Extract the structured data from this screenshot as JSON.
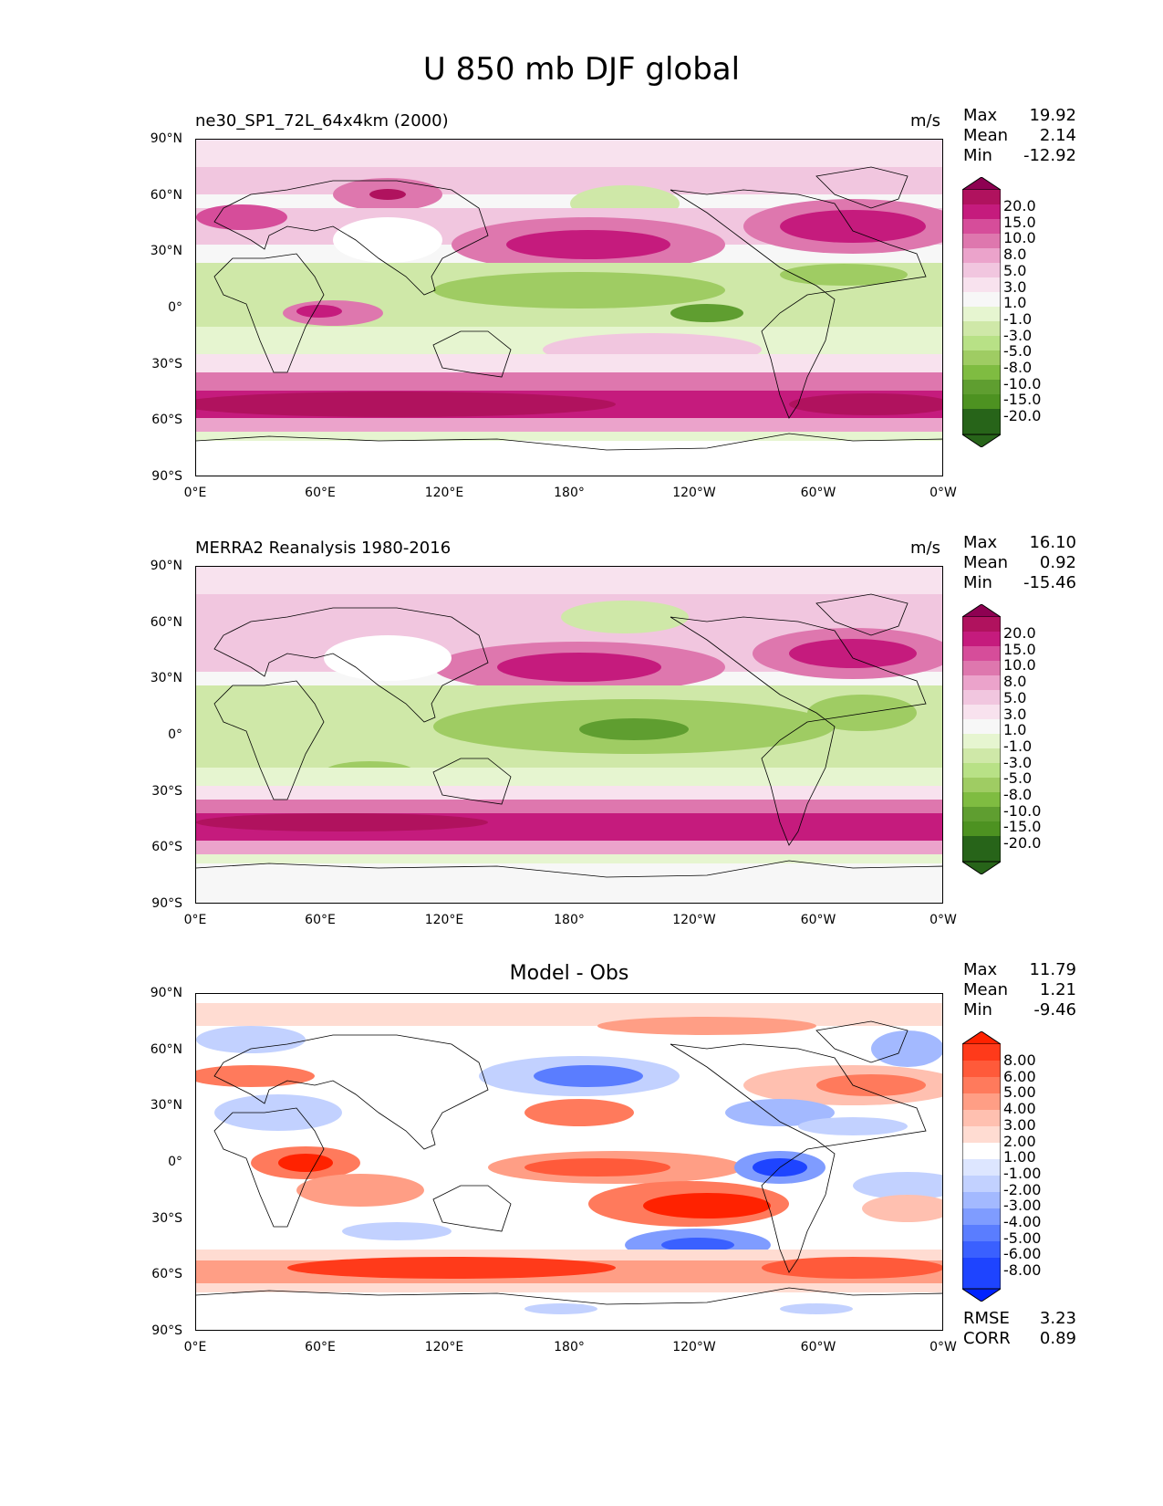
{
  "title": "U 850 mb DJF global",
  "axes": {
    "yticks": [
      "90°N",
      "60°N",
      "30°N",
      "0°",
      "30°S",
      "60°S",
      "90°S"
    ],
    "xticks": [
      "0°E",
      "60°E",
      "120°E",
      "180°",
      "120°W",
      "60°W",
      "0°W"
    ]
  },
  "panels": [
    {
      "title": "ne30_SP1_72L_64x4km (2000)",
      "units": "m/s",
      "stats": {
        "max_label": "Max",
        "max": "19.92",
        "mean_label": "Mean",
        "mean": "2.14",
        "min_label": "Min",
        "min": "-12.92"
      },
      "colorbar_labels": [
        "20.0",
        "15.0",
        "10.0",
        "8.0",
        "5.0",
        "3.0",
        "1.0",
        "-1.0",
        "-3.0",
        "-5.0",
        "-8.0",
        "-10.0",
        "-15.0",
        "-20.0"
      ]
    },
    {
      "title": "MERRA2 Reanalysis 1980-2016",
      "units": "m/s",
      "stats": {
        "max_label": "Max",
        "max": "16.10",
        "mean_label": "Mean",
        "mean": "0.92",
        "min_label": "Min",
        "min": "-15.46"
      },
      "colorbar_labels": [
        "20.0",
        "15.0",
        "10.0",
        "8.0",
        "5.0",
        "3.0",
        "1.0",
        "-1.0",
        "-3.0",
        "-5.0",
        "-8.0",
        "-10.0",
        "-15.0",
        "-20.0"
      ]
    },
    {
      "title": "Model - Obs",
      "units": "",
      "stats": {
        "max_label": "Max",
        "max": "11.79",
        "mean_label": "Mean",
        "mean": "1.21",
        "min_label": "Min",
        "min": "-9.46"
      },
      "colorbar_labels": [
        "8.00",
        "6.00",
        "5.00",
        "4.00",
        "3.00",
        "2.00",
        "1.00",
        "-1.00",
        "-2.00",
        "-3.00",
        "-4.00",
        "-5.00",
        "-6.00",
        "-8.00"
      ],
      "footer": {
        "rmse_label": "RMSE",
        "rmse": "3.23",
        "corr_label": "CORR",
        "corr": "0.89"
      }
    }
  ],
  "colors": {
    "pink_green": [
      "#8e0152",
      "#b0125e",
      "#c51b7d",
      "#d64d9a",
      "#de77ae",
      "#eba3cb",
      "#f1c6df",
      "#f8e2ee",
      "#f7f7f7",
      "#e6f5d0",
      "#cfe8a8",
      "#b8e186",
      "#9fcc63",
      "#7fbc41",
      "#5f9e30",
      "#4d9221",
      "#276419"
    ],
    "diff": [
      "#ff2200",
      "#ff3a1a",
      "#ff5a3a",
      "#ff7a5c",
      "#ff9e85",
      "#ffc0b0",
      "#ffdcd2",
      "#ffffff",
      "#dde6ff",
      "#c2d1ff",
      "#a3b9ff",
      "#7f9cff",
      "#5a7dff",
      "#3a60ff",
      "#1e44ff",
      "#0022ff"
    ]
  }
}
